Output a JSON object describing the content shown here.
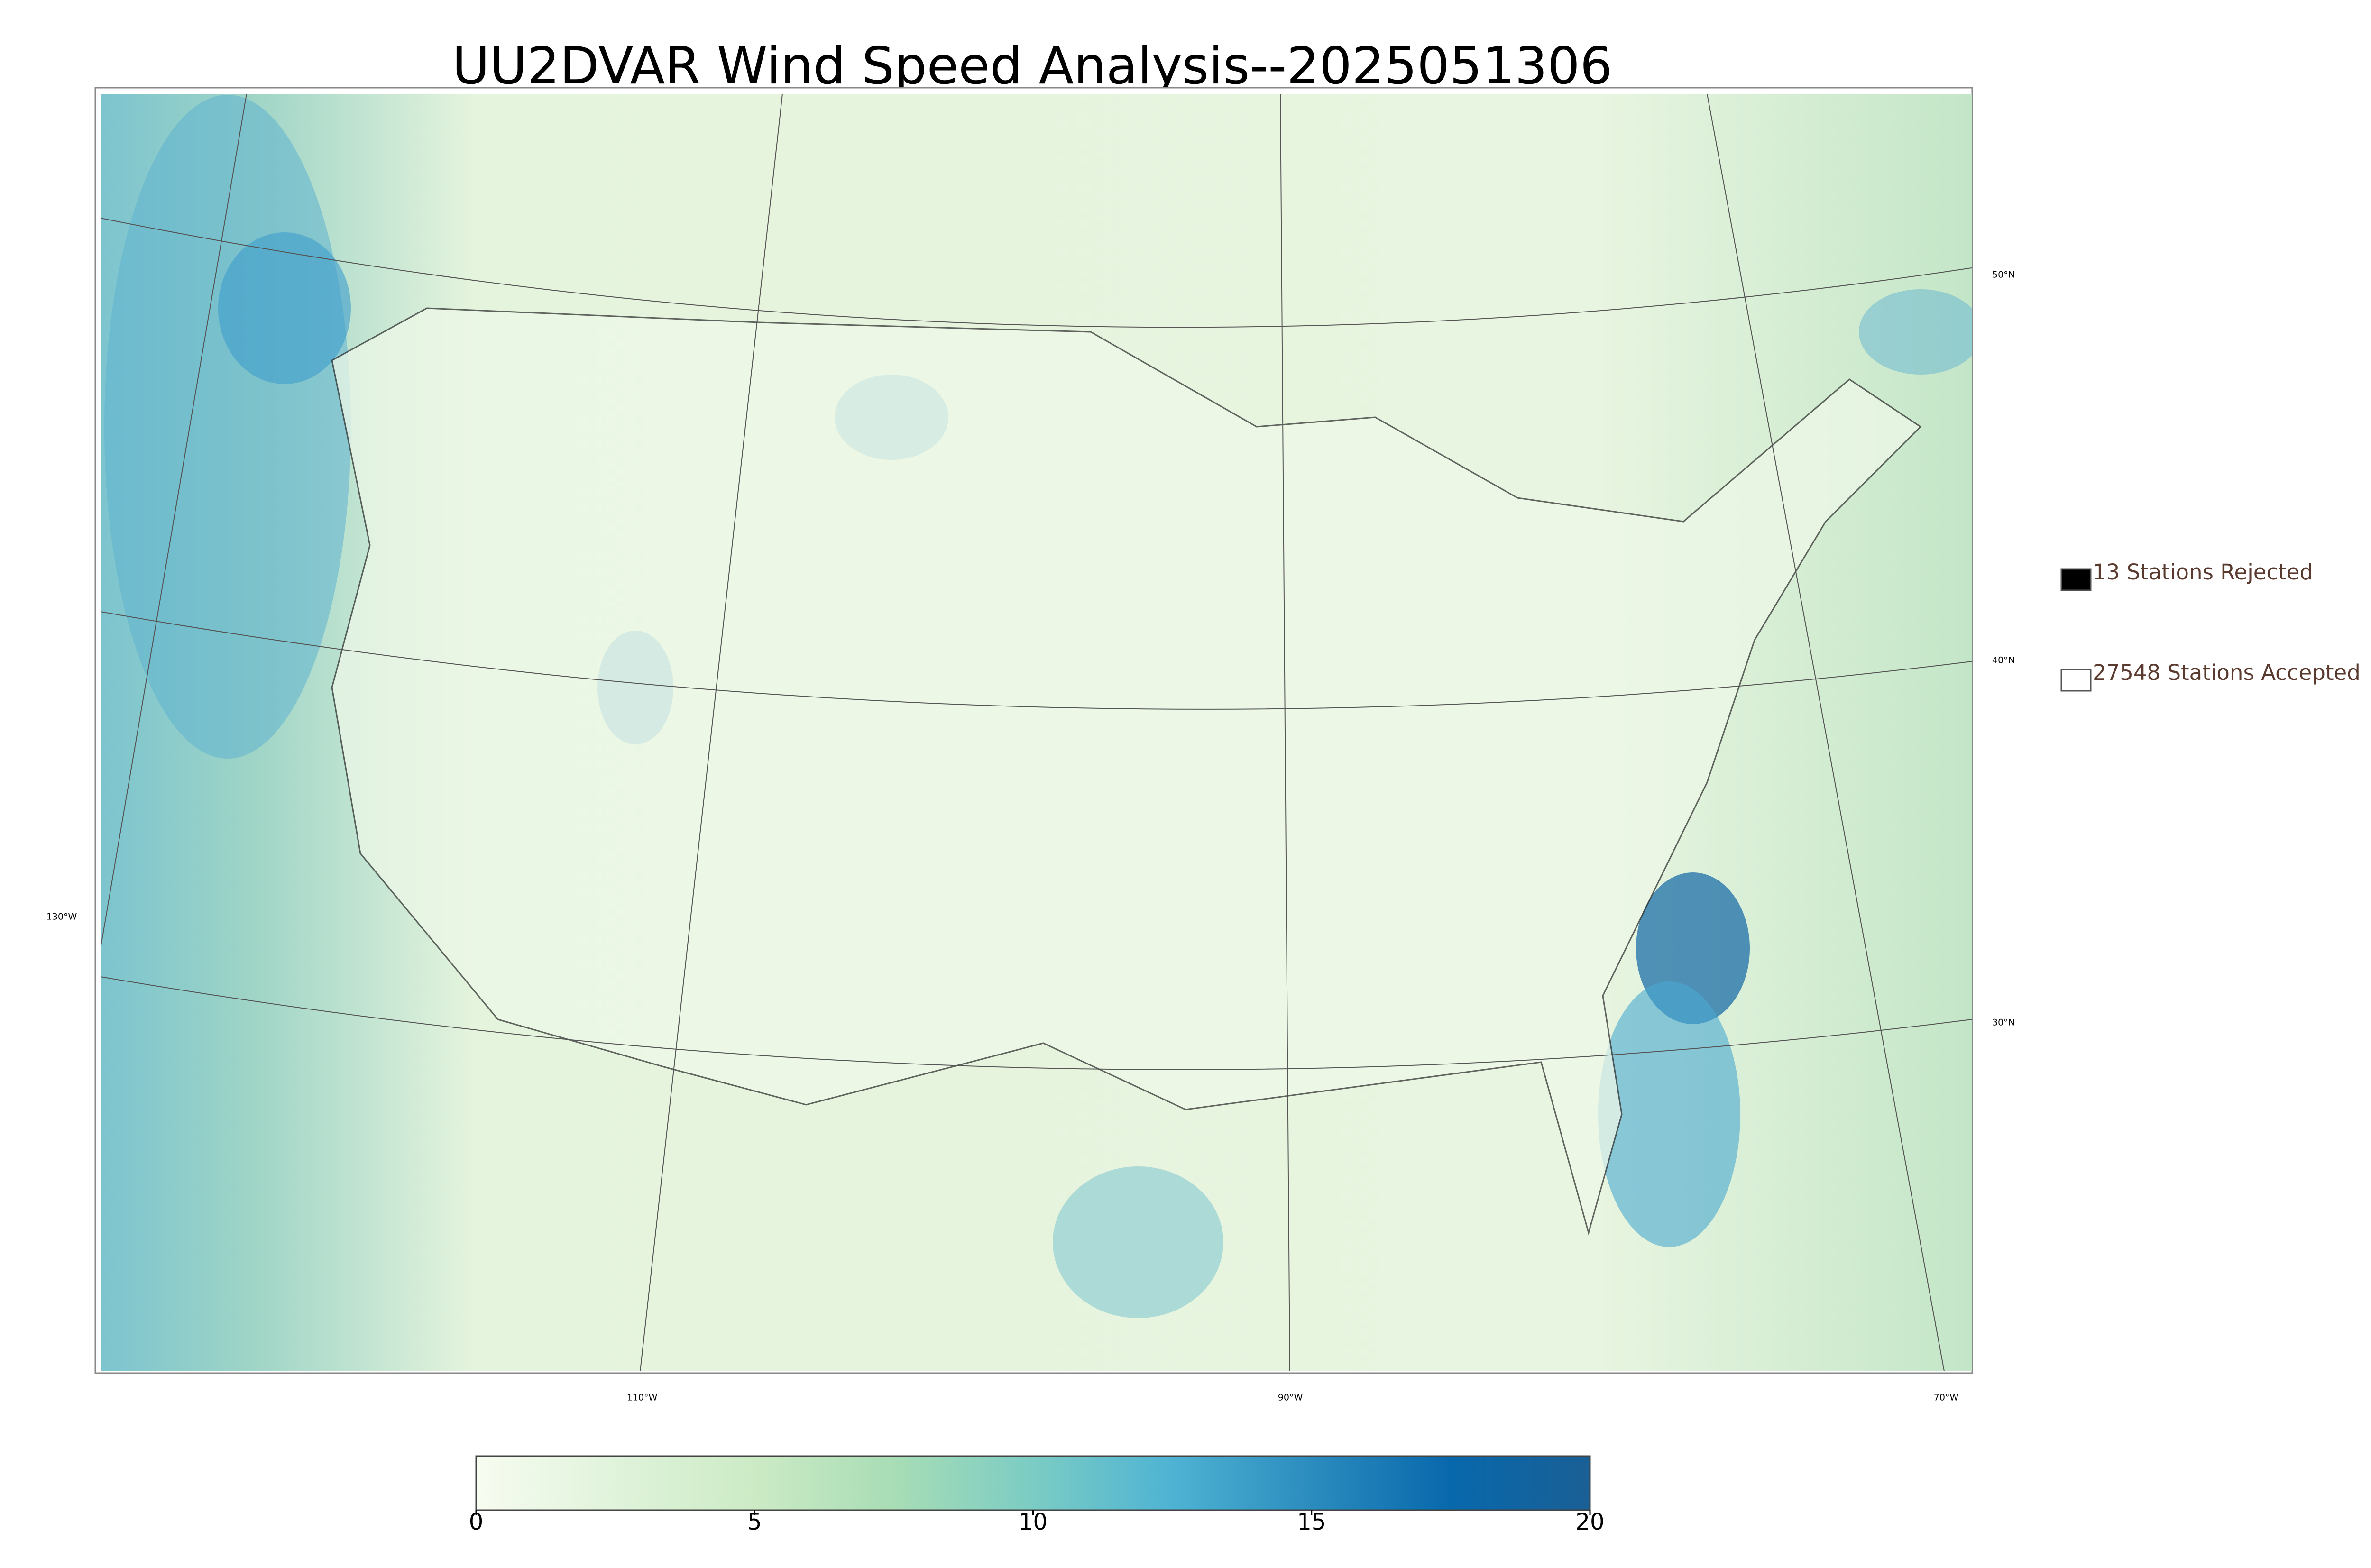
{
  "title": "UU2DVAR Wind Speed Analysis--2025051306",
  "legend": [
    {
      "label": "13 Stations Rejected",
      "fill": "#000000"
    },
    {
      "label": "27548 Stations Accepted",
      "fill": "#ffffff"
    }
  ],
  "lat_labels": [
    "50°N",
    "40°N",
    "30°N"
  ],
  "lon_labels": [
    "130°W",
    "110°W",
    "90°W",
    "70°W"
  ],
  "colorbar": {
    "lim": [
      0,
      20
    ],
    "ticks": [
      0,
      5,
      10,
      15,
      20
    ],
    "colors": [
      "#f7fcf0",
      "#e0f3db",
      "#ccebc5",
      "#a8ddb5",
      "#7bccc4",
      "#4eb3d3",
      "#2b8cbe",
      "#0868ac",
      "#1a5f95"
    ]
  }
}
